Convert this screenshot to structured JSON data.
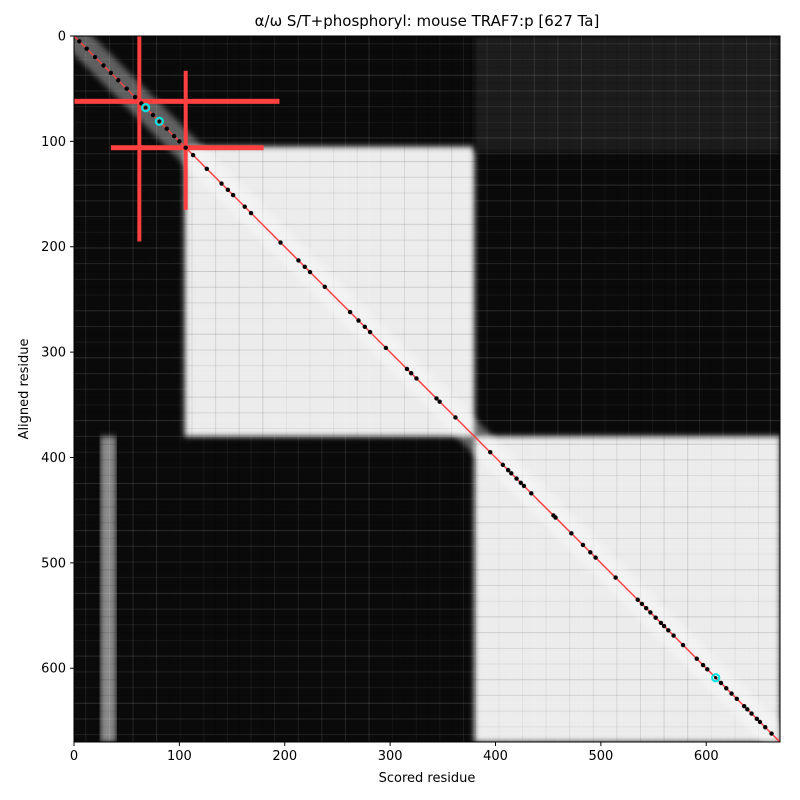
{
  "chart_data": {
    "type": "heatmap",
    "title": "α/ω S/T+phosphoryl: mouse TRAF7:p [627 Ta]",
    "xlabel": "Scored residue",
    "ylabel": "Aligned residue",
    "xlim": [
      0,
      670
    ],
    "ylim": [
      670,
      0
    ],
    "x_ticks": [
      0,
      100,
      200,
      300,
      400,
      500,
      600
    ],
    "y_ticks": [
      0,
      100,
      200,
      300,
      400,
      500,
      600
    ],
    "x_tick_labels": [
      "0",
      "100",
      "200",
      "300",
      "400",
      "500",
      "600"
    ],
    "y_tick_labels": [
      "0",
      "100",
      "200",
      "300",
      "400",
      "500",
      "600"
    ],
    "colormap": "grayscale (black = low, white = high)",
    "diagonal_color": "#ff4040",
    "domain_blocks": [
      {
        "x_range": [
          105,
          380
        ],
        "y_range": [
          105,
          380
        ],
        "level": "high"
      },
      {
        "x_range": [
          380,
          670
        ],
        "y_range": [
          380,
          670
        ],
        "level": "high"
      },
      {
        "x_range": [
          25,
          40
        ],
        "y_range": [
          380,
          670
        ],
        "level": "medium"
      },
      {
        "x_range": [
          380,
          670
        ],
        "y_range": [
          0,
          110
        ],
        "level": "low"
      }
    ],
    "diagonal_points": [
      5,
      12,
      20,
      28,
      35,
      42,
      50,
      58,
      64,
      75,
      88,
      95,
      100,
      106,
      113,
      126,
      140,
      146,
      151,
      162,
      168,
      196,
      213,
      219,
      224,
      238,
      262,
      270,
      276,
      281,
      296,
      316,
      320,
      325,
      344,
      347,
      362,
      395,
      407,
      412,
      415,
      420,
      424,
      427,
      434,
      455,
      457,
      472,
      483,
      490,
      495,
      514,
      535,
      539,
      543,
      547,
      552,
      557,
      560,
      564,
      569,
      578,
      591,
      597,
      601,
      614,
      619,
      624,
      629,
      636,
      639,
      643,
      648,
      651,
      656,
      662
    ],
    "highlighted_points": [
      {
        "x": 68,
        "y": 68,
        "color": "#00e5e5"
      },
      {
        "x": 81,
        "y": 81,
        "color": "#00e5e5"
      },
      {
        "x": 609,
        "y": 609,
        "color": "#00e5e5"
      }
    ],
    "red_bars": [
      {
        "orientation": "vertical",
        "at": 62,
        "range": [
          0,
          195
        ]
      },
      {
        "orientation": "vertical",
        "at": 106,
        "range": [
          33,
          165
        ]
      },
      {
        "orientation": "horizontal",
        "at": 62,
        "range": [
          0,
          195
        ]
      },
      {
        "orientation": "horizontal",
        "at": 106,
        "range": [
          35,
          180
        ]
      }
    ]
  }
}
